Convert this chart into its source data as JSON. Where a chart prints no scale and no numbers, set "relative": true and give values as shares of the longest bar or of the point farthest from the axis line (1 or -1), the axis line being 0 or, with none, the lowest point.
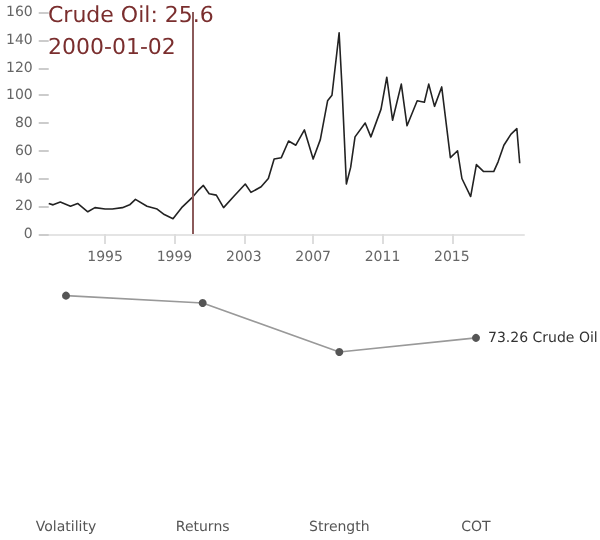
{
  "chart_data": [
    {
      "type": "line",
      "x": [
        "1991-10",
        "1992-01",
        "1992-06",
        "1993-01",
        "1993-06",
        "1994-01",
        "1994-06",
        "1995-01",
        "1995-06",
        "1996-01",
        "1996-06",
        "1996-10",
        "1997-06",
        "1998-01",
        "1998-06",
        "1998-12",
        "1999-06",
        "2000-01-02",
        "2000-06",
        "2000-09",
        "2001-01",
        "2001-06",
        "2001-11",
        "2002-06",
        "2003-02",
        "2003-06",
        "2004-01",
        "2004-06",
        "2004-10",
        "2005-03",
        "2005-08",
        "2006-01",
        "2006-07",
        "2007-01",
        "2007-06",
        "2007-11",
        "2008-02",
        "2008-07",
        "2008-09",
        "2008-12",
        "2009-03",
        "2009-06",
        "2010-01",
        "2010-05",
        "2010-12",
        "2011-04",
        "2011-08",
        "2012-02",
        "2012-06",
        "2013-01",
        "2013-06",
        "2013-09",
        "2014-01",
        "2014-06",
        "2014-12",
        "2015-05",
        "2015-08",
        "2016-02",
        "2016-06",
        "2016-11",
        "2017-06",
        "2017-09",
        "2018-01",
        "2018-06",
        "2018-10",
        "2018-12"
      ],
      "series": [
        {
          "color": "#222222",
          "values": [
            22,
            21,
            23,
            20,
            22,
            16,
            19,
            18,
            18,
            19,
            21,
            25,
            20,
            18,
            14,
            11,
            19,
            26,
            32,
            35,
            29,
            28,
            19,
            27,
            36,
            30,
            34,
            40,
            54,
            55,
            67,
            64,
            75,
            54,
            68,
            96,
            100,
            145,
            105,
            36,
            48,
            70,
            80,
            70,
            90,
            113,
            82,
            108,
            78,
            96,
            95,
            108,
            92,
            106,
            55,
            60,
            40,
            27,
            50,
            45,
            45,
            52,
            64,
            72,
            76,
            51
          ]
        }
      ],
      "xlim": [
        "1991-10",
        "2019-03"
      ],
      "xticks": [
        "1995",
        "1999",
        "2003",
        "2007",
        "2011",
        "2015"
      ],
      "ylim": [
        0,
        160
      ],
      "yticks": [
        0,
        20,
        40,
        60,
        80,
        100,
        120,
        140,
        160
      ],
      "ref_lines": [
        {
          "axis": "x",
          "value": "2000-01-02",
          "label": "Crude Oil: 25.6",
          "color": "#8b5a5a"
        }
      ],
      "annotations": [
        "2000-01-02"
      ],
      "grid": false,
      "marker": "none"
    },
    {
      "type": "line",
      "categories": [
        "Volatility",
        "Returns",
        "Strength",
        "COT"
      ],
      "relative": true,
      "series": [
        {
          "color": "#999999",
          "values": [
            1,
            0.87,
            0,
            0.25
          ]
        }
      ],
      "annotations": [
        {
          "text": "73.26 Crude Oil",
          "x": "COT",
          "y": 0.25
        }
      ],
      "marker": "circle",
      "grid": false
    }
  ]
}
